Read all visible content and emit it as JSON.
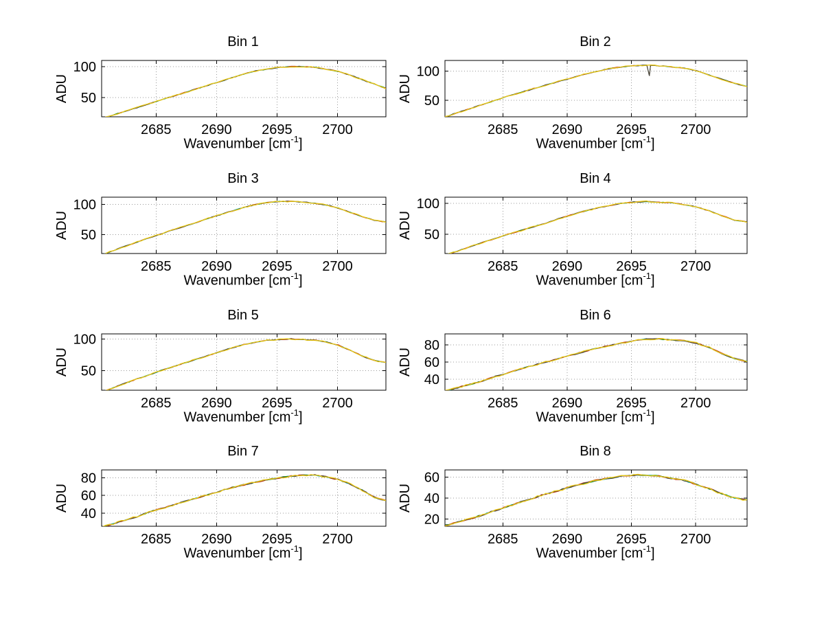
{
  "figure": {
    "background": "#ffffff"
  },
  "axes_labels": {
    "y": "ADU",
    "x_pre": "Wavenumber [cm",
    "x_sup": "-1",
    "x_post": "]"
  },
  "style": {
    "trace_colors": [
      "#00b0b0",
      "#109010",
      "#c03010",
      "#404040",
      "#e6c619"
    ],
    "grid_color": "#999999",
    "axis_color": "#000000",
    "noise_amplitude": 1.2
  },
  "chart_data": [
    {
      "type": "line",
      "title": "Bin 1",
      "xlabel": "Wavenumber [cm-1]",
      "ylabel": "ADU",
      "xlim": [
        2680.5,
        2704
      ],
      "ylim": [
        19,
        110
      ],
      "xticks": [
        2685,
        2690,
        2695,
        2700
      ],
      "yticks": [
        50,
        100
      ],
      "x_start": 2680.5,
      "x_end": 2704,
      "values": [
        16,
        22,
        28,
        34,
        40,
        46,
        52,
        58,
        64,
        70,
        76,
        82,
        88,
        93,
        96,
        99,
        100,
        100,
        99,
        96,
        92,
        86,
        79,
        72,
        65
      ]
    },
    {
      "type": "line",
      "title": "Bin 2",
      "xlabel": "Wavenumber [cm-1]",
      "ylabel": "ADU",
      "xlim": [
        2680.5,
        2704
      ],
      "ylim": [
        22,
        118
      ],
      "xticks": [
        2685,
        2690,
        2695,
        2700
      ],
      "yticks": [
        50,
        100
      ],
      "x_start": 2680.5,
      "x_end": 2704,
      "values": [
        22,
        29,
        36,
        43,
        50,
        57,
        63,
        70,
        76,
        82,
        88,
        94,
        99,
        104,
        107,
        109,
        110,
        109,
        107,
        105,
        100,
        93,
        86,
        79,
        74
      ],
      "dips": [
        {
          "x": 2696.4,
          "depth": 18
        }
      ]
    },
    {
      "type": "line",
      "title": "Bin 3",
      "xlabel": "Wavenumber [cm-1]",
      "ylabel": "ADU",
      "xlim": [
        2680.5,
        2704
      ],
      "ylim": [
        19,
        112
      ],
      "xticks": [
        2685,
        2690,
        2695,
        2700
      ],
      "yticks": [
        50,
        100
      ],
      "x_start": 2680.5,
      "x_end": 2704,
      "values": [
        17,
        24,
        31,
        38,
        45,
        51,
        58,
        64,
        70,
        77,
        83,
        89,
        95,
        100,
        103,
        105,
        105,
        104,
        102,
        99,
        94,
        87,
        80,
        74,
        71
      ]
    },
    {
      "type": "line",
      "title": "Bin 4",
      "xlabel": "Wavenumber [cm-1]",
      "ylabel": "ADU",
      "xlim": [
        2680.5,
        2704
      ],
      "ylim": [
        19,
        110
      ],
      "xticks": [
        2685,
        2690,
        2695,
        2700
      ],
      "yticks": [
        50,
        100
      ],
      "x_start": 2680.5,
      "x_end": 2704,
      "values": [
        17,
        23,
        30,
        37,
        43,
        50,
        56,
        62,
        68,
        75,
        81,
        87,
        92,
        96,
        100,
        102,
        103,
        102,
        101,
        98,
        94,
        88,
        80,
        73,
        70
      ]
    },
    {
      "type": "line",
      "title": "Bin 5",
      "xlabel": "Wavenumber [cm-1]",
      "ylabel": "ADU",
      "xlim": [
        2680.5,
        2704
      ],
      "ylim": [
        19,
        108
      ],
      "xticks": [
        2685,
        2690,
        2695,
        2700
      ],
      "yticks": [
        50,
        100
      ],
      "x_start": 2680.5,
      "x_end": 2704,
      "values": [
        16,
        23,
        30,
        37,
        43,
        50,
        56,
        62,
        68,
        74,
        80,
        86,
        91,
        95,
        98,
        99,
        100,
        99,
        98,
        95,
        90,
        82,
        73,
        66,
        63
      ]
    },
    {
      "type": "line",
      "title": "Bin 6",
      "xlabel": "Wavenumber [cm-1]",
      "ylabel": "ADU",
      "xlim": [
        2680.5,
        2704
      ],
      "ylim": [
        27,
        93
      ],
      "xticks": [
        2685,
        2690,
        2695,
        2700
      ],
      "yticks": [
        40,
        60,
        80
      ],
      "x_start": 2680.5,
      "x_end": 2704,
      "values": [
        26,
        30,
        34,
        38,
        43,
        47,
        52,
        56,
        60,
        64,
        68,
        72,
        76,
        79,
        82,
        85,
        87,
        87,
        86,
        85,
        82,
        77,
        70,
        64,
        61
      ]
    },
    {
      "type": "line",
      "title": "Bin 7",
      "xlabel": "Wavenumber [cm-1]",
      "ylabel": "ADU",
      "xlim": [
        2680.5,
        2704
      ],
      "ylim": [
        25,
        89
      ],
      "xticks": [
        2685,
        2690,
        2695,
        2700
      ],
      "yticks": [
        40,
        60,
        80
      ],
      "x_start": 2680.5,
      "x_end": 2704,
      "values": [
        24,
        28,
        32,
        36,
        41,
        45,
        49,
        53,
        57,
        61,
        65,
        69,
        72,
        75,
        78,
        80,
        82,
        83,
        83,
        81,
        78,
        73,
        66,
        58,
        54
      ]
    },
    {
      "type": "line",
      "title": "Bin 8",
      "xlabel": "Wavenumber [cm-1]",
      "ylabel": "ADU",
      "xlim": [
        2680.5,
        2704
      ],
      "ylim": [
        13,
        67
      ],
      "xticks": [
        2685,
        2690,
        2695,
        2700
      ],
      "yticks": [
        20,
        40,
        60
      ],
      "x_start": 2680.5,
      "x_end": 2704,
      "values": [
        14,
        17,
        20,
        24,
        28,
        32,
        36,
        40,
        44,
        47,
        51,
        54,
        57,
        59,
        61,
        62,
        62,
        61,
        59,
        57,
        53,
        49,
        44,
        40,
        38
      ]
    }
  ]
}
